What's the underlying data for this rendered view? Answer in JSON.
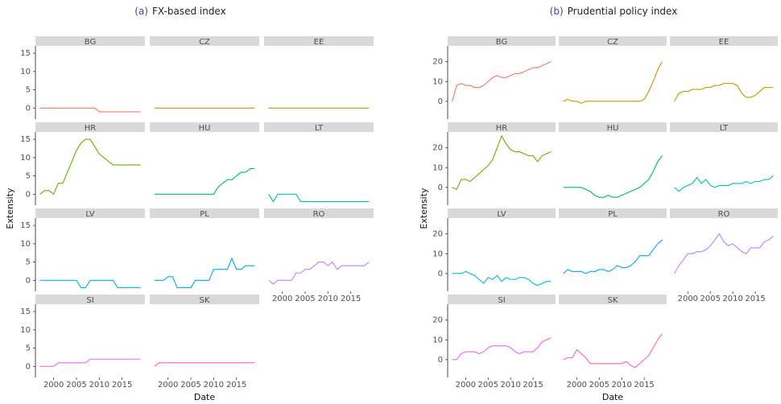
{
  "chart_data": [
    {
      "type": "line",
      "panel_label": "(a)",
      "title": "FX-based index",
      "xlabel": "Date",
      "ylabel": "Extensity",
      "xlim": [
        1996,
        2020
      ],
      "xticks": [
        2000,
        2005,
        2010,
        2015
      ],
      "ylim": [
        -3,
        17
      ],
      "yticks": [
        0,
        5,
        10,
        15
      ],
      "x": [
        1997,
        1998,
        1999,
        2000,
        2001,
        2002,
        2003,
        2004,
        2005,
        2006,
        2007,
        2008,
        2009,
        2010,
        2011,
        2012,
        2013,
        2014,
        2015,
        2016,
        2017,
        2018,
        2019
      ],
      "series": [
        {
          "name": "BG",
          "color": "#F8766D",
          "values": [
            0,
            0,
            0,
            0,
            0,
            0,
            0,
            0,
            0,
            0,
            0,
            0,
            0,
            -1,
            -1,
            -1,
            -1,
            -1,
            -1,
            -1,
            -1,
            -1,
            -1
          ]
        },
        {
          "name": "CZ",
          "color": "#DB8E00",
          "values": [
            0,
            0,
            0,
            0,
            0,
            0,
            0,
            0,
            0,
            0,
            0,
            0,
            0,
            0,
            0,
            0,
            0,
            0,
            0,
            0,
            0,
            0,
            0
          ]
        },
        {
          "name": "EE",
          "color": "#AEA200",
          "values": [
            0,
            0,
            0,
            0,
            0,
            0,
            0,
            0,
            0,
            0,
            0,
            0,
            0,
            0,
            0,
            0,
            0,
            0,
            0,
            0,
            0,
            0,
            0
          ]
        },
        {
          "name": "HR",
          "color": "#64B200",
          "values": [
            0,
            1,
            1,
            0,
            3,
            3,
            6,
            9,
            12,
            14,
            15,
            15,
            13,
            11,
            10,
            9,
            8,
            8,
            8,
            8,
            8,
            8,
            8
          ]
        },
        {
          "name": "HU",
          "color": "#00BD5C",
          "values": [
            0,
            0,
            0,
            0,
            0,
            0,
            0,
            0,
            0,
            0,
            0,
            0,
            0,
            0,
            2,
            3,
            4,
            4,
            5,
            6,
            6,
            7,
            7
          ]
        },
        {
          "name": "LT",
          "color": "#00C1A7",
          "values": [
            0,
            -2,
            0,
            0,
            0,
            0,
            0,
            -2,
            -2,
            -2,
            -2,
            -2,
            -2,
            -2,
            -2,
            -2,
            -2,
            -2,
            -2,
            -2,
            -2,
            -2,
            -2
          ]
        },
        {
          "name": "LV",
          "color": "#00BADE",
          "values": [
            0,
            0,
            0,
            0,
            0,
            0,
            0,
            0,
            0,
            -2,
            -2,
            0,
            0,
            0,
            0,
            0,
            0,
            -2,
            -2,
            -2,
            -2,
            -2,
            -2
          ]
        },
        {
          "name": "PL",
          "color": "#00A6FF",
          "values": [
            0,
            0,
            0,
            1,
            1,
            -2,
            -2,
            -2,
            -2,
            0,
            0,
            0,
            0,
            3,
            3,
            3,
            3,
            6,
            3,
            3,
            4,
            4,
            4
          ]
        },
        {
          "name": "RO",
          "color": "#B385FF",
          "values": [
            0,
            -1,
            0,
            0,
            0,
            0,
            2,
            2,
            3,
            3,
            4,
            5,
            5,
            4,
            5,
            3,
            4,
            4,
            4,
            4,
            4,
            4,
            5
          ]
        },
        {
          "name": "SI",
          "color": "#EF67EB",
          "values": [
            0,
            0,
            0,
            0,
            1,
            1,
            1,
            1,
            1,
            1,
            1,
            2,
            2,
            2,
            2,
            2,
            2,
            2,
            2,
            2,
            2,
            2,
            2
          ]
        },
        {
          "name": "SK",
          "color": "#FF63B6",
          "values": [
            0,
            1,
            1,
            1,
            1,
            1,
            1,
            1,
            1,
            1,
            1,
            1,
            1,
            1,
            1,
            1,
            1,
            1,
            1,
            1,
            1,
            1,
            1
          ]
        }
      ]
    },
    {
      "type": "line",
      "panel_label": "(b)",
      "title": "Prudential policy index",
      "xlabel": "Date",
      "ylabel": "Extensity",
      "xlim": [
        1996,
        2020
      ],
      "xticks": [
        2000,
        2005,
        2010,
        2015
      ],
      "ylim": [
        -9,
        28
      ],
      "yticks": [
        0,
        10,
        20
      ],
      "x": [
        1997,
        1998,
        1999,
        2000,
        2001,
        2002,
        2003,
        2004,
        2005,
        2006,
        2007,
        2008,
        2009,
        2010,
        2011,
        2012,
        2013,
        2014,
        2015,
        2016,
        2017,
        2018,
        2019
      ],
      "series": [
        {
          "name": "BG",
          "color": "#F8766D",
          "values": [
            0,
            8,
            9,
            8,
            8,
            7,
            7,
            8,
            10,
            12,
            13,
            12,
            12,
            13,
            14,
            14,
            15,
            16,
            17,
            17,
            18,
            19,
            20
          ]
        },
        {
          "name": "CZ",
          "color": "#DB8E00",
          "values": [
            0,
            1,
            0,
            0,
            -1,
            0,
            0,
            0,
            0,
            0,
            0,
            0,
            0,
            0,
            0,
            0,
            0,
            0,
            1,
            5,
            10,
            16,
            20
          ]
        },
        {
          "name": "EE",
          "color": "#AEA200",
          "values": [
            0,
            4,
            5,
            5,
            6,
            6,
            6,
            7,
            7,
            8,
            8,
            9,
            9,
            9,
            8,
            4,
            2,
            2,
            3,
            5,
            7,
            7,
            7
          ]
        },
        {
          "name": "HR",
          "color": "#64B200",
          "values": [
            0,
            -1,
            4,
            4,
            3,
            5,
            7,
            9,
            11,
            14,
            20,
            26,
            22,
            19,
            18,
            18,
            17,
            16,
            16,
            13,
            16,
            17,
            18
          ]
        },
        {
          "name": "HU",
          "color": "#00BD5C",
          "values": [
            0,
            0,
            0,
            0,
            0,
            -1,
            -2,
            -4,
            -5,
            -5,
            -4,
            -5,
            -5,
            -4,
            -3,
            -2,
            -1,
            0,
            2,
            4,
            8,
            13,
            16
          ]
        },
        {
          "name": "LT",
          "color": "#00C1A7",
          "values": [
            0,
            -2,
            0,
            1,
            2,
            5,
            2,
            4,
            1,
            0,
            1,
            1,
            1,
            2,
            2,
            2,
            3,
            2,
            3,
            3,
            4,
            4,
            6
          ]
        },
        {
          "name": "LV",
          "color": "#00BADE",
          "values": [
            0,
            0,
            0,
            1,
            0,
            -1,
            -3,
            -5,
            -2,
            -3,
            -1,
            -4,
            -2,
            -3,
            -3,
            -2,
            -2,
            -3,
            -5,
            -6,
            -5,
            -4,
            -4
          ]
        },
        {
          "name": "PL",
          "color": "#00A6FF",
          "values": [
            0,
            2,
            1,
            1,
            1,
            0,
            1,
            1,
            2,
            2,
            1,
            2,
            4,
            3,
            3,
            4,
            6,
            9,
            9,
            9,
            12,
            15,
            17
          ]
        },
        {
          "name": "RO",
          "color": "#B385FF",
          "values": [
            0,
            4,
            7,
            10,
            10,
            11,
            11,
            12,
            14,
            17,
            20,
            16,
            14,
            15,
            13,
            11,
            10,
            13,
            13,
            13,
            16,
            17,
            19
          ]
        },
        {
          "name": "SI",
          "color": "#EF67EB",
          "values": [
            0,
            0,
            3,
            4,
            4,
            4,
            3,
            4,
            6,
            7,
            7,
            7,
            7,
            6,
            4,
            3,
            4,
            4,
            4,
            6,
            9,
            10,
            11
          ]
        },
        {
          "name": "SK",
          "color": "#FF63B6",
          "values": [
            0,
            1,
            1,
            5,
            3,
            1,
            -2,
            -2,
            -2,
            -2,
            -2,
            -2,
            -2,
            -2,
            -1,
            -3,
            -4,
            -2,
            0,
            2,
            6,
            10,
            13
          ]
        }
      ]
    }
  ]
}
